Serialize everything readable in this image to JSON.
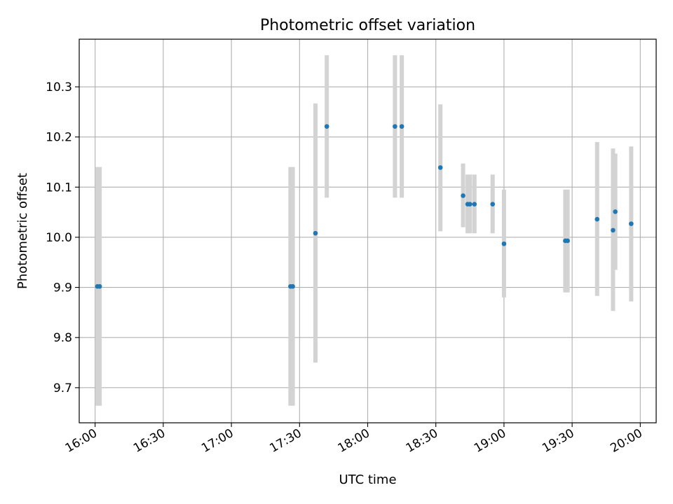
{
  "chart_data": {
    "type": "scatter",
    "title": "Photometric offset variation",
    "xlabel": "UTC time",
    "ylabel": "Photometric offset",
    "x_unit": "UTC",
    "xlim": [
      "15:53",
      "20:07"
    ],
    "ylim": [
      9.63,
      10.395
    ],
    "x_ticks": [
      "16:00",
      "16:30",
      "17:00",
      "17:30",
      "18:00",
      "18:30",
      "19:00",
      "19:30",
      "20:00"
    ],
    "y_ticks": [
      "9.7",
      "9.8",
      "9.9",
      "10.0",
      "10.1",
      "10.2",
      "10.3"
    ],
    "grid": true,
    "colors": {
      "point": "#1f77b4",
      "errorbar": "#d3d3d3",
      "grid": "#b0b0b0"
    },
    "points": [
      {
        "t": "16:01",
        "y": 9.902,
        "ylow": 9.664,
        "yhigh": 10.14
      },
      {
        "t": "16:02",
        "y": 9.902,
        "ylow": 9.664,
        "yhigh": 10.14
      },
      {
        "t": "17:26",
        "y": 9.902,
        "ylow": 9.664,
        "yhigh": 10.14
      },
      {
        "t": "17:27",
        "y": 9.902,
        "ylow": 9.664,
        "yhigh": 10.14
      },
      {
        "t": "17:37",
        "y": 10.008,
        "ylow": 9.75,
        "yhigh": 10.267
      },
      {
        "t": "17:42",
        "y": 10.221,
        "ylow": 10.079,
        "yhigh": 10.363
      },
      {
        "t": "18:12",
        "y": 10.221,
        "ylow": 10.079,
        "yhigh": 10.363
      },
      {
        "t": "18:15",
        "y": 10.221,
        "ylow": 10.079,
        "yhigh": 10.363
      },
      {
        "t": "18:32",
        "y": 10.139,
        "ylow": 10.012,
        "yhigh": 10.265
      },
      {
        "t": "18:42",
        "y": 10.083,
        "ylow": 10.02,
        "yhigh": 10.147
      },
      {
        "t": "18:44",
        "y": 10.066,
        "ylow": 10.008,
        "yhigh": 10.125
      },
      {
        "t": "18:45",
        "y": 10.066,
        "ylow": 10.008,
        "yhigh": 10.125
      },
      {
        "t": "18:47",
        "y": 10.066,
        "ylow": 10.008,
        "yhigh": 10.125
      },
      {
        "t": "18:55",
        "y": 10.066,
        "ylow": 10.008,
        "yhigh": 10.125
      },
      {
        "t": "19:00",
        "y": 9.987,
        "ylow": 9.88,
        "yhigh": 10.095
      },
      {
        "t": "19:27",
        "y": 9.993,
        "ylow": 9.89,
        "yhigh": 10.095
      },
      {
        "t": "19:28",
        "y": 9.993,
        "ylow": 9.89,
        "yhigh": 10.095
      },
      {
        "t": "19:41",
        "y": 10.036,
        "ylow": 9.883,
        "yhigh": 10.19
      },
      {
        "t": "19:48",
        "y": 10.014,
        "ylow": 9.853,
        "yhigh": 10.177
      },
      {
        "t": "19:49",
        "y": 10.051,
        "ylow": 9.935,
        "yhigh": 10.167
      },
      {
        "t": "19:56",
        "y": 10.027,
        "ylow": 9.872,
        "yhigh": 10.181
      }
    ]
  }
}
